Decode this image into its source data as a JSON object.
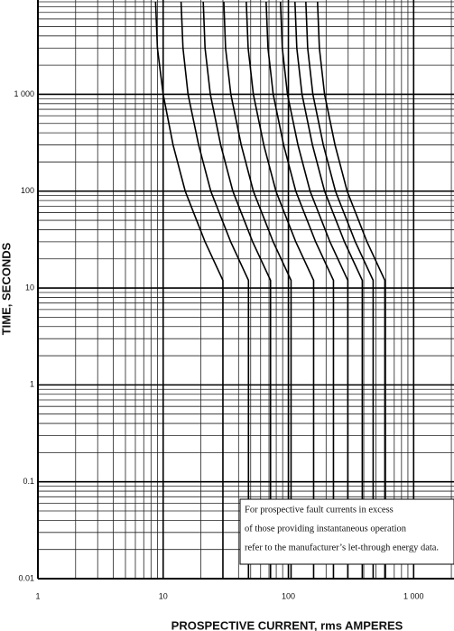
{
  "chart_data": {
    "type": "line",
    "x_label": "PROSPECTIVE CURRENT, rms AMPERES",
    "y_label": "TIME, SECONDS",
    "annotation": [
      "For prospective fault currents in excess",
      "of those providing instantaneous operation",
      "refer to the manufacturer’s let-through energy data."
    ],
    "log_x": true,
    "log_y": true,
    "grid": true,
    "xlim": [
      1,
      2100
    ],
    "ylim": [
      0.01,
      9400
    ],
    "xticks": [
      1,
      10,
      100,
      {
        "value": 1000,
        "label": "1 000"
      }
    ],
    "yticks": [
      0.01,
      0.1,
      1,
      10,
      100,
      {
        "value": 1000,
        "label": "1 000"
      }
    ],
    "x_minor_grid": [
      2,
      3,
      4,
      5,
      6,
      7,
      8,
      9,
      20,
      30,
      40,
      50,
      60,
      70,
      80,
      90,
      200,
      300,
      400,
      500,
      600,
      700,
      800,
      900,
      2000
    ],
    "y_minor_grid": [
      0.02,
      0.03,
      0.04,
      0.05,
      0.06,
      0.07,
      0.08,
      0.09,
      0.2,
      0.3,
      0.4,
      0.5,
      0.6,
      0.7,
      0.8,
      0.9,
      2,
      3,
      4,
      5,
      6,
      7,
      8,
      9,
      20,
      30,
      40,
      50,
      60,
      70,
      80,
      90,
      200,
      300,
      400,
      500,
      600,
      700,
      800,
      900,
      2000,
      3000,
      4000,
      5000,
      6000,
      7000,
      8000,
      9000
    ],
    "color": "#000000",
    "series": [
      {
        "x": [
          8.7,
          9,
          10,
          12,
          15,
          21.6,
          30,
          30
        ],
        "values": [
          9000,
          3000,
          1000,
          300,
          100,
          30,
          12,
          0.01
        ]
      },
      {
        "x": [
          13.9,
          14.4,
          15.8,
          19.2,
          24,
          34.6,
          48,
          48
        ],
        "values": [
          9000,
          3000,
          1000,
          300,
          100,
          30,
          12,
          0.01
        ]
      },
      {
        "x": [
          20.9,
          21.6,
          23.8,
          28.8,
          36,
          51.8,
          72,
          72
        ],
        "values": [
          9000,
          3000,
          1000,
          300,
          100,
          30,
          12,
          0.01
        ]
      },
      {
        "x": [
          30.5,
          31.5,
          34.7,
          42,
          52.5,
          75.6,
          105,
          105
        ],
        "values": [
          9000,
          3000,
          1000,
          300,
          100,
          30,
          12,
          0.01
        ]
      },
      {
        "x": [
          46.1,
          47.7,
          52.5,
          63.6,
          79.5,
          114.5,
          159,
          159
        ],
        "values": [
          9000,
          3000,
          1000,
          300,
          100,
          30,
          12,
          0.01
        ]
      },
      {
        "x": [
          66.4,
          68.7,
          75.6,
          91.6,
          114.5,
          164.9,
          229,
          229
        ],
        "values": [
          9000,
          3000,
          1000,
          300,
          100,
          30,
          12,
          0.01
        ]
      },
      {
        "x": [
          86.4,
          89.4,
          98.3,
          119.2,
          149,
          214.6,
          298,
          298
        ],
        "values": [
          9000,
          3000,
          1000,
          300,
          100,
          30,
          12,
          0.01
        ]
      },
      {
        "x": [
          112.8,
          116.7,
          128.4,
          155.6,
          194.5,
          280.1,
          389,
          389
        ],
        "values": [
          9000,
          3000,
          1000,
          300,
          100,
          30,
          12,
          0.01
        ]
      },
      {
        "x": [
          137.8,
          142.5,
          156.8,
          190,
          237.5,
          342,
          475,
          475
        ],
        "values": [
          9000,
          3000,
          1000,
          300,
          100,
          30,
          12,
          0.01
        ]
      },
      {
        "x": [
          170.8,
          176.7,
          194.4,
          235.6,
          294.5,
          424.1,
          589,
          589
        ],
        "values": [
          9000,
          3000,
          1000,
          300,
          100,
          30,
          12,
          0.01
        ]
      }
    ]
  }
}
